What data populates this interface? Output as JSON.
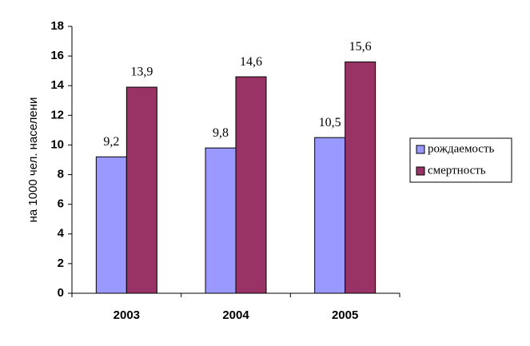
{
  "chart_data": {
    "type": "bar",
    "y_label": "на 1000 чел. населени",
    "categories": [
      "2003",
      "2004",
      "2005"
    ],
    "series": [
      {
        "name": "рождаемость",
        "color": "#9999ff",
        "values": [
          9.2,
          9.8,
          10.5
        ],
        "value_labels": [
          "9,2",
          "9,8",
          "10,5"
        ]
      },
      {
        "name": "смертность",
        "color": "#993366",
        "values": [
          13.9,
          14.6,
          15.6
        ],
        "value_labels": [
          "13,9",
          "14,6",
          "15,6"
        ]
      }
    ],
    "ylim": [
      0,
      18
    ],
    "yticks": [
      0,
      2,
      4,
      6,
      8,
      10,
      12,
      14,
      16,
      18
    ],
    "grid": false,
    "legend": "right"
  }
}
